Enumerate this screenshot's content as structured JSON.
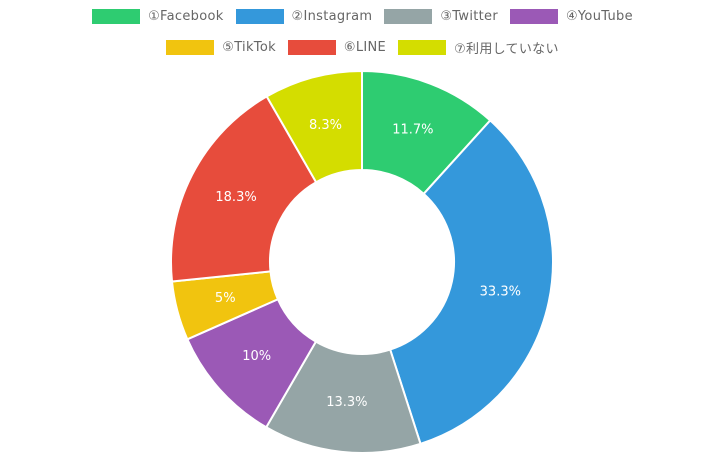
{
  "chart_data": {
    "type": "pie",
    "donut": true,
    "legend_position": "top",
    "categories": [
      "①Facebook",
      "②Instagram",
      "③Twitter",
      "④YouTube",
      "⑤TikTok",
      "⑥LINE",
      "⑦利用していない"
    ],
    "values": [
      11.7,
      33.3,
      13.3,
      10,
      5,
      18.3,
      8.3
    ],
    "labels": [
      "11.7%",
      "33.3%",
      "13.3%",
      "10%",
      "5%",
      "18.3%",
      "8.3%"
    ],
    "colors": [
      "#2ecc71",
      "#3498db",
      "#95a5a6",
      "#9b59b6",
      "#f1c40f",
      "#e74c3c",
      "#d4dd00"
    ]
  }
}
